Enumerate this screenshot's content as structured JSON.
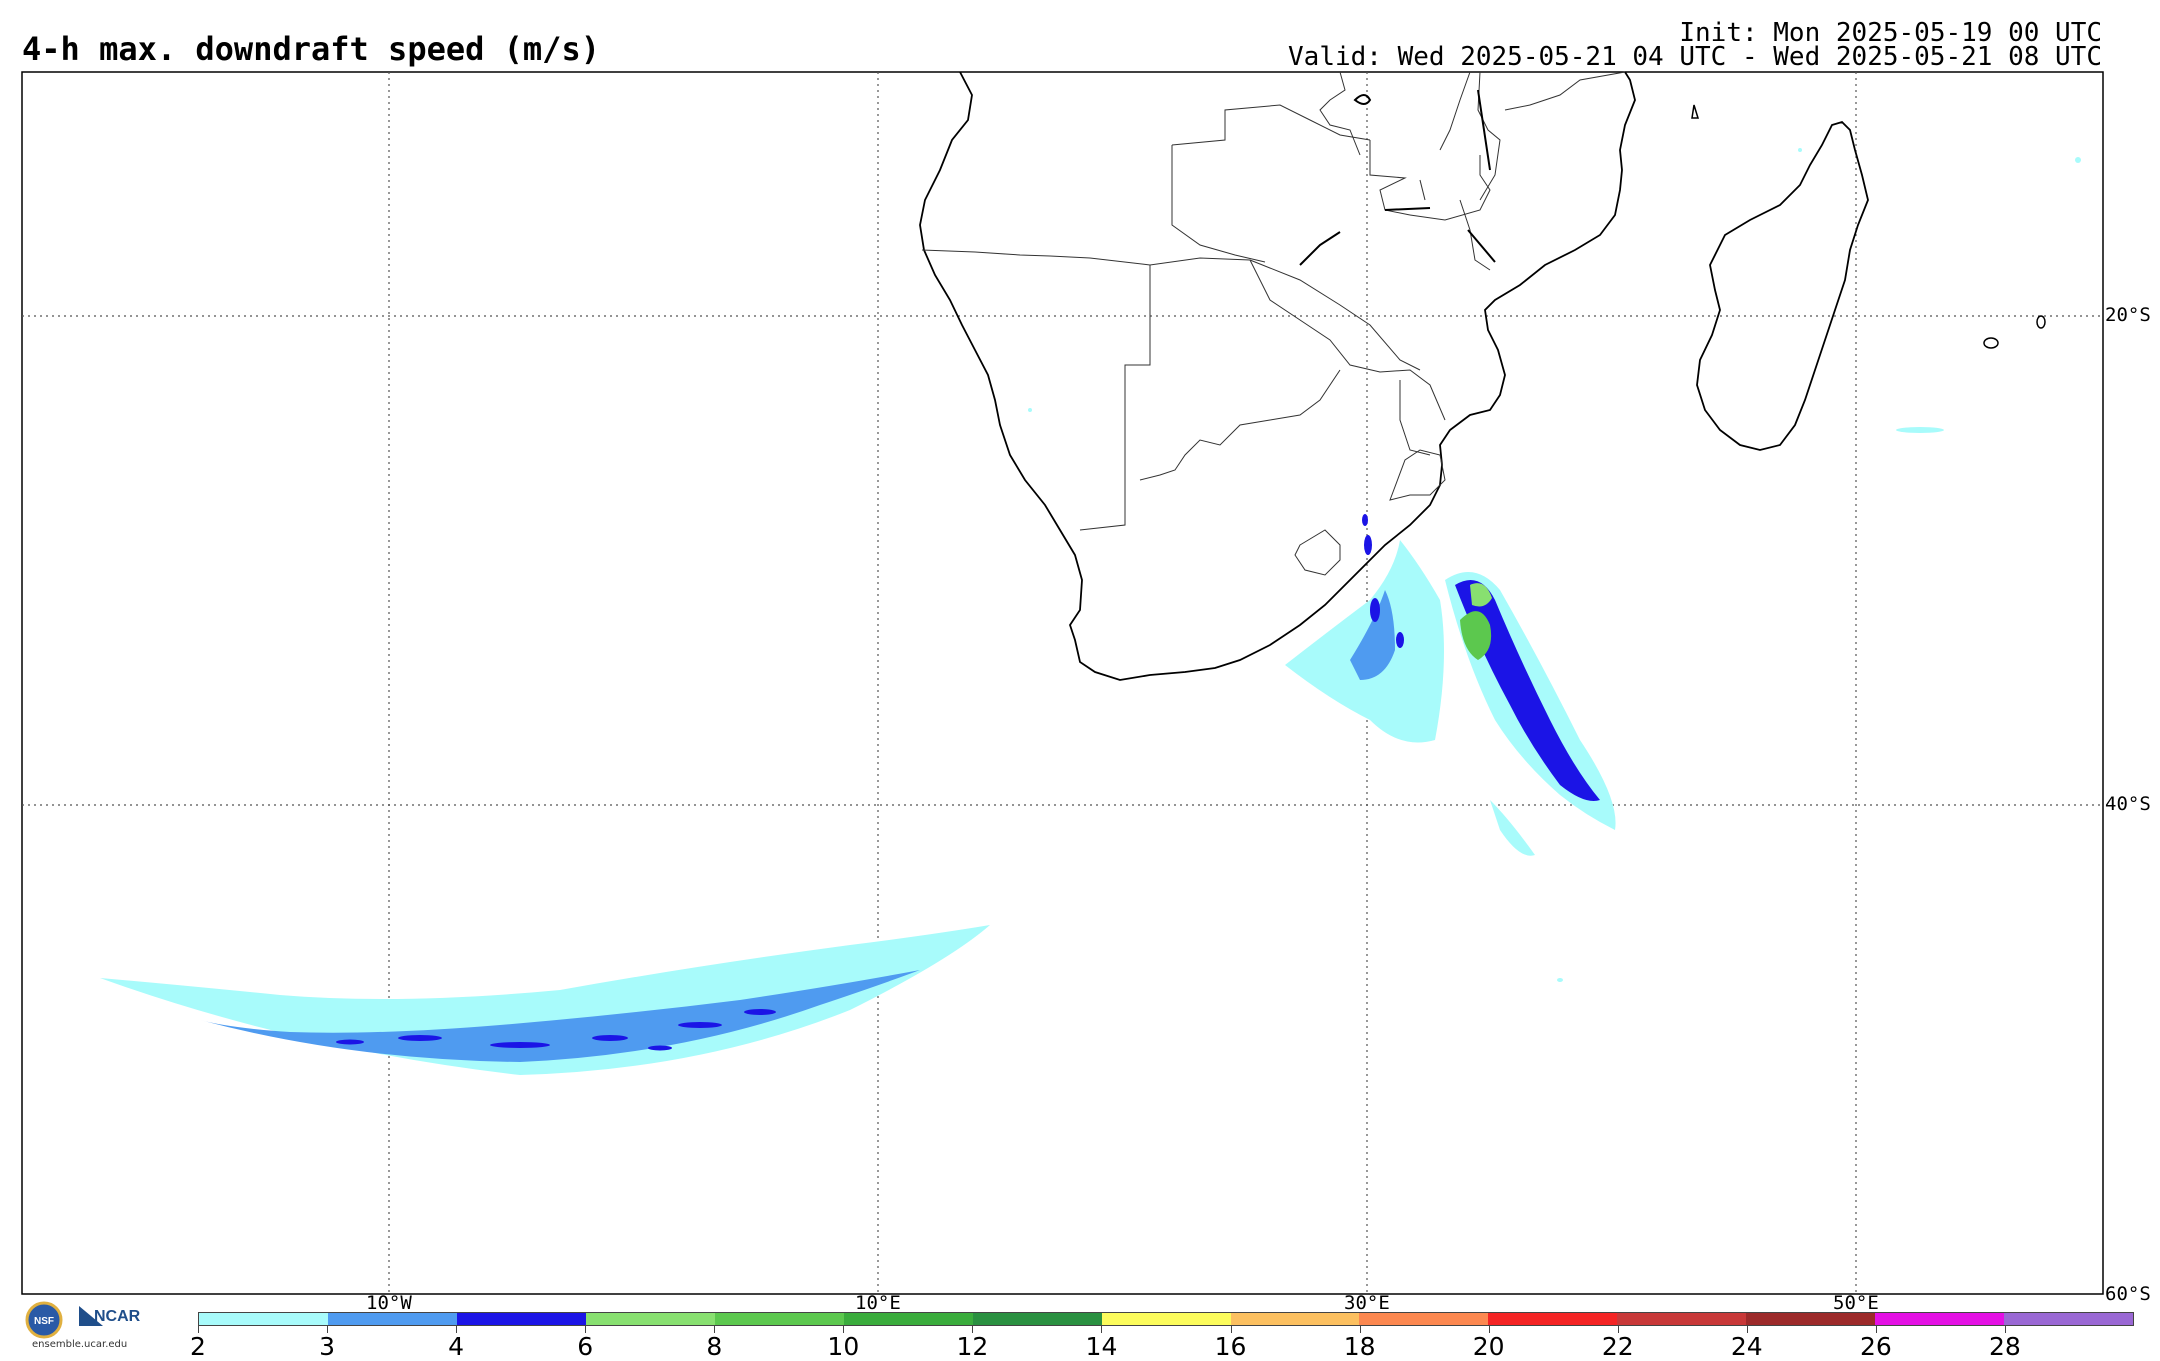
{
  "header": {
    "title": "4-h max. downdraft speed (m/s)",
    "init": "Init: Mon 2025-05-19 00 UTC",
    "valid": "Valid: Wed 2025-05-21 04 UTC - Wed 2025-05-21 08 UTC"
  },
  "map": {
    "lat_labels": [
      "20°S",
      "40°S",
      "60°S"
    ],
    "lon_labels": [
      "10°W",
      "10°E",
      "30°E",
      "50°E"
    ]
  },
  "colorbar": {
    "levels": [
      "2",
      "3",
      "4",
      "6",
      "8",
      "10",
      "12",
      "14",
      "16",
      "18",
      "20",
      "22",
      "24",
      "26",
      "28"
    ],
    "colors": [
      "#a8fbfb",
      "#4f9bf0",
      "#1b14e6",
      "#88e070",
      "#5cc84e",
      "#3aac3c",
      "#2a9040",
      "#fcfc5c",
      "#fcc060",
      "#fc8850",
      "#f42424",
      "#c83838",
      "#9c2a2a",
      "#e410e4",
      "#9a68d4"
    ]
  },
  "footer": {
    "logo_text": "NSF",
    "ncar_text": "NCAR",
    "url": "ensemble.ucar.edu"
  }
}
